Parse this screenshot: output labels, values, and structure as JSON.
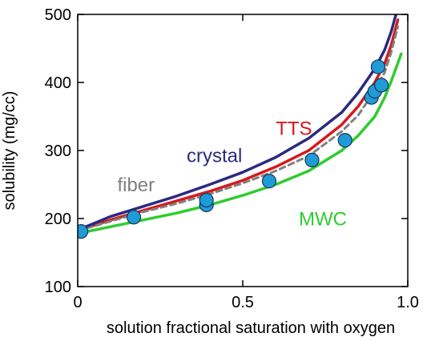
{
  "chart_data": {
    "type": "line",
    "xlabel": "solution fractional saturation with oxygen",
    "ylabel": "solubility (mg/cc)",
    "xlim": [
      0,
      1.0
    ],
    "ylim": [
      100,
      500
    ],
    "x_ticks": [
      0,
      0.5,
      1.0
    ],
    "x_tick_labels": [
      "0",
      "0.5",
      "1.0"
    ],
    "y_ticks": [
      100,
      200,
      300,
      400,
      500
    ],
    "y_tick_labels": [
      "100",
      "200",
      "300",
      "400",
      "500"
    ],
    "grid": false,
    "series": [
      {
        "name": "crystal",
        "color": "#2b2a80",
        "style": "solid",
        "x": [
          0,
          0.1,
          0.2,
          0.3,
          0.4,
          0.5,
          0.6,
          0.7,
          0.8,
          0.85,
          0.9,
          0.93,
          0.95,
          0.97
        ],
        "y": [
          183,
          203,
          218,
          233,
          250,
          268,
          290,
          318,
          356,
          385,
          420,
          448,
          475,
          510
        ]
      },
      {
        "name": "TTS",
        "color": "#d7191c",
        "style": "solid",
        "x": [
          0,
          0.1,
          0.2,
          0.3,
          0.4,
          0.5,
          0.6,
          0.7,
          0.8,
          0.85,
          0.9,
          0.93,
          0.95,
          0.97
        ],
        "y": [
          182,
          198,
          212,
          226,
          240,
          256,
          276,
          300,
          338,
          365,
          400,
          428,
          455,
          492
        ]
      },
      {
        "name": "fiber",
        "color": "#808080",
        "style": "dashed",
        "x": [
          0,
          0.1,
          0.2,
          0.3,
          0.4,
          0.5,
          0.6,
          0.7,
          0.8,
          0.85,
          0.9,
          0.93,
          0.95,
          0.97
        ],
        "y": [
          182,
          196,
          210,
          222,
          236,
          252,
          270,
          292,
          328,
          352,
          388,
          415,
          445,
          482
        ]
      },
      {
        "name": "MWC",
        "color": "#2ecc2e",
        "style": "solid",
        "x": [
          0,
          0.1,
          0.2,
          0.3,
          0.4,
          0.5,
          0.6,
          0.7,
          0.8,
          0.85,
          0.9,
          0.93,
          0.95,
          0.98
        ],
        "y": [
          178,
          188,
          198,
          208,
          220,
          234,
          250,
          270,
          300,
          322,
          350,
          378,
          402,
          442
        ]
      }
    ],
    "points": {
      "color": "#1f9bd7",
      "x": [
        0.01,
        0.17,
        0.39,
        0.39,
        0.58,
        0.71,
        0.81,
        0.89,
        0.9,
        0.91,
        0.92
      ],
      "y": [
        181,
        202,
        220,
        227,
        255,
        286,
        315,
        378,
        387,
        423,
        396
      ]
    },
    "annotations": [
      {
        "text": "crystal",
        "series": "crystal",
        "x": 0.33,
        "y": 283
      },
      {
        "text": "TTS",
        "series": "TTS",
        "x": 0.6,
        "y": 323
      },
      {
        "text": "fiber",
        "series": "fiber",
        "x": 0.12,
        "y": 240
      },
      {
        "text": "MWC",
        "series": "MWC",
        "x": 0.67,
        "y": 190
      }
    ]
  }
}
